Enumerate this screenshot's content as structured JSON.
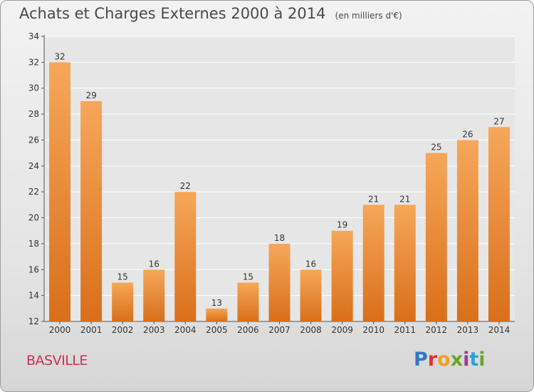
{
  "chart_data": {
    "type": "bar",
    "title": "Achats et Charges Externes 2000 à 2014",
    "subtitle": "(en milliers d'€)",
    "categories": [
      "2000",
      "2001",
      "2002",
      "2003",
      "2004",
      "2005",
      "2006",
      "2007",
      "2008",
      "2009",
      "2010",
      "2011",
      "2012",
      "2013",
      "2014"
    ],
    "values": [
      32,
      29,
      15,
      16,
      22,
      13,
      15,
      18,
      16,
      19,
      21,
      21,
      25,
      26,
      27
    ],
    "ylim": [
      12,
      34
    ],
    "yticks": [
      12,
      14,
      16,
      18,
      20,
      22,
      24,
      26,
      28,
      30,
      32,
      34
    ],
    "grid": true,
    "bar_color_top": "#f6a75a",
    "bar_color_bottom": "#d96f1a"
  },
  "commune": "BASVILLE",
  "logo": {
    "letters": [
      "P",
      "r",
      "o",
      "x",
      "i",
      "t",
      "i"
    ]
  }
}
